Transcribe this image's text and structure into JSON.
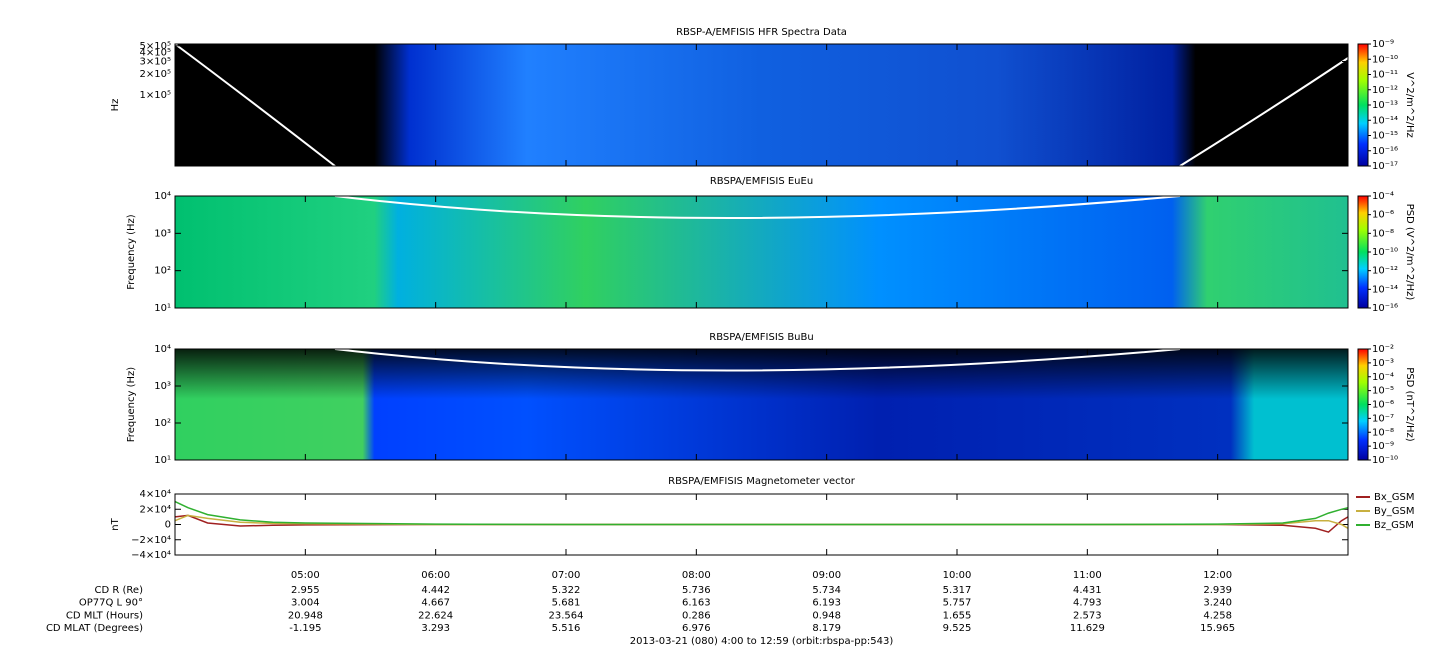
{
  "chart_data": [
    {
      "type": "spectrogram",
      "title": "RBSP-A/EMFISIS  HFR Spectra Data",
      "y_label": "Hz",
      "log_y": true,
      "ylim": [
        10000,
        530000
      ],
      "yticks": [
        {
          "value": 100000,
          "label": "1×10⁵"
        },
        {
          "value": 200000,
          "label": "2×10⁵"
        },
        {
          "value": 300000,
          "label": "3×10⁵"
        },
        {
          "value": 400000,
          "label": "4×10⁵"
        },
        {
          "value": 500000,
          "label": "5×10⁵"
        }
      ],
      "colorbar": {
        "label": "V^2/m^2/Hz",
        "log": true,
        "lim": [
          1e-17,
          1e-09
        ],
        "ticks": [
          {
            "value": 1e-09,
            "label": "10⁻⁹"
          },
          {
            "value": 1e-10,
            "label": "10⁻¹⁰"
          },
          {
            "value": 1e-11,
            "label": "10⁻¹¹"
          },
          {
            "value": 1e-12,
            "label": "10⁻¹²"
          },
          {
            "value": 1e-13,
            "label": "10⁻¹³"
          },
          {
            "value": 1e-14,
            "label": "10⁻¹⁴"
          },
          {
            "value": 1e-15,
            "label": "10⁻¹⁵"
          },
          {
            "value": 1e-16,
            "label": "10⁻¹⁶"
          },
          {
            "value": 1e-17,
            "label": "10⁻¹⁷"
          }
        ]
      }
    },
    {
      "type": "spectrogram",
      "title": "RBSPA/EMFISIS  EuEu",
      "y_label": "Frequency (Hz)",
      "log_y": true,
      "ylim": [
        10,
        10000
      ],
      "yticks": [
        {
          "value": 10,
          "label": "10¹"
        },
        {
          "value": 100,
          "label": "10²"
        },
        {
          "value": 1000,
          "label": "10³"
        },
        {
          "value": 10000,
          "label": "10⁴"
        }
      ],
      "colorbar": {
        "label": "PSD (V^2/m^2/Hz)",
        "log": true,
        "lim": [
          1e-16,
          0.0001
        ],
        "ticks": [
          {
            "value": 0.0001,
            "label": "10⁻⁴"
          },
          {
            "value": 1e-06,
            "label": "10⁻⁶"
          },
          {
            "value": 1e-08,
            "label": "10⁻⁸"
          },
          {
            "value": 1e-10,
            "label": "10⁻¹⁰"
          },
          {
            "value": 1e-12,
            "label": "10⁻¹²"
          },
          {
            "value": 1e-14,
            "label": "10⁻¹⁴"
          },
          {
            "value": 1e-16,
            "label": "10⁻¹⁶"
          }
        ]
      }
    },
    {
      "type": "spectrogram",
      "title": "RBSPA/EMFISIS  BuBu",
      "y_label": "Frequency (Hz)",
      "log_y": true,
      "ylim": [
        10,
        10000
      ],
      "yticks": [
        {
          "value": 10,
          "label": "10¹"
        },
        {
          "value": 100,
          "label": "10²"
        },
        {
          "value": 1000,
          "label": "10³"
        },
        {
          "value": 10000,
          "label": "10⁴"
        }
      ],
      "colorbar": {
        "label": "PSD (nT^2/Hz)",
        "log": true,
        "lim": [
          1e-10,
          0.01
        ],
        "ticks": [
          {
            "value": 0.01,
            "label": "10⁻²"
          },
          {
            "value": 0.001,
            "label": "10⁻³"
          },
          {
            "value": 0.0001,
            "label": "10⁻⁴"
          },
          {
            "value": 1e-05,
            "label": "10⁻⁵"
          },
          {
            "value": 1e-06,
            "label": "10⁻⁶"
          },
          {
            "value": 1e-07,
            "label": "10⁻⁷"
          },
          {
            "value": 1e-08,
            "label": "10⁻⁸"
          },
          {
            "value": 1e-09,
            "label": "10⁻⁹"
          },
          {
            "value": 1e-10,
            "label": "10⁻¹⁰"
          }
        ]
      }
    },
    {
      "type": "line",
      "title": "RBSPA/EMFISIS  Magnetometer vector",
      "y_label": "nT",
      "ylim": [
        -40000,
        40000
      ],
      "yticks": [
        {
          "value": 40000,
          "label": "4×10⁴"
        },
        {
          "value": 20000,
          "label": "2×10⁴"
        },
        0,
        {
          "value": -20000,
          "label": "−2×10⁴"
        },
        {
          "value": -40000,
          "label": "−4×10⁴"
        }
      ],
      "xlim": [
        4,
        13
      ],
      "xticks": [
        {
          "value": 5,
          "label": "05:00"
        },
        {
          "value": 6,
          "label": "06:00"
        },
        {
          "value": 7,
          "label": "07:00"
        },
        {
          "value": 8,
          "label": "08:00"
        },
        {
          "value": 9,
          "label": "09:00"
        },
        {
          "value": 10,
          "label": "10:00"
        },
        {
          "value": 11,
          "label": "11:00"
        },
        {
          "value": 12,
          "label": "12:00"
        }
      ],
      "x": [
        4.0,
        4.1,
        4.25,
        4.5,
        4.75,
        5.0,
        6.0,
        7.0,
        8.0,
        9.0,
        10.0,
        11.0,
        12.0,
        12.5,
        12.75,
        12.85,
        12.95,
        13.0
      ],
      "series": [
        {
          "name": "Bx_GSM",
          "color": "#a02020",
          "values": [
            10000,
            12000,
            2000,
            -2000,
            -1000,
            -500,
            0,
            0,
            0,
            0,
            0,
            0,
            0,
            -1000,
            -5000,
            -10000,
            5000,
            10000
          ]
        },
        {
          "name": "By_GSM",
          "color": "#c8b040",
          "values": [
            5000,
            12000,
            8000,
            3000,
            1500,
            1000,
            0,
            0,
            0,
            0,
            0,
            0,
            0,
            1000,
            5000,
            5000,
            0,
            -5000
          ]
        },
        {
          "name": "Bz_GSM",
          "color": "#30b030",
          "values": [
            30000,
            22000,
            13000,
            6000,
            3000,
            2000,
            500,
            0,
            0,
            0,
            0,
            0,
            500,
            2000,
            8000,
            15000,
            20000,
            22000
          ]
        }
      ]
    }
  ],
  "ephemeris": {
    "rows": [
      {
        "label": "CD R (Re)",
        "values": [
          "2.955",
          "4.442",
          "5.322",
          "5.736",
          "5.734",
          "5.317",
          "4.431",
          "2.939"
        ]
      },
      {
        "label": "OP77Q L 90°",
        "values": [
          "3.004",
          "4.667",
          "5.681",
          "6.163",
          "6.193",
          "5.757",
          "4.793",
          "3.240"
        ]
      },
      {
        "label": "CD MLT (Hours)",
        "values": [
          "20.948",
          "22.624",
          "23.564",
          "0.286",
          "0.948",
          "1.655",
          "2.573",
          "4.258"
        ]
      },
      {
        "label": "CD MLAT (Degrees)",
        "values": [
          "-1.195",
          "3.293",
          "5.516",
          "6.976",
          "8.179",
          "9.525",
          "11.629",
          "15.965"
        ]
      }
    ],
    "footer": "2013-03-21 (080) 4:00 to 12:59 (orbit:rbspa-pp:543)"
  }
}
